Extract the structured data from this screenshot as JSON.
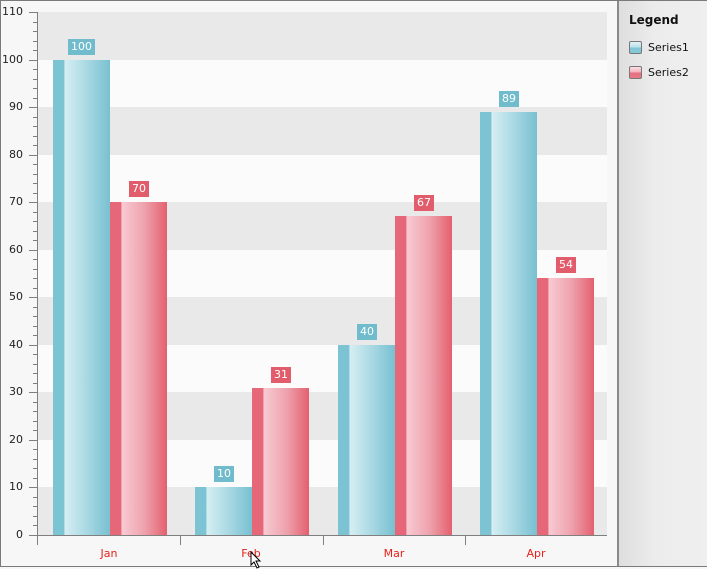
{
  "chart_data": {
    "type": "bar",
    "title": "",
    "xlabel": "",
    "ylabel": "",
    "categories": [
      "Jan",
      "Feb",
      "Mar",
      "Apr"
    ],
    "series": [
      {
        "name": "Series1",
        "values": [
          100,
          10,
          40,
          89
        ],
        "color": "#7cc3d3"
      },
      {
        "name": "Series2",
        "values": [
          70,
          31,
          67,
          54
        ],
        "color": "#e56778"
      }
    ],
    "ylim": [
      0,
      110
    ],
    "y_ticks": [
      0,
      10,
      20,
      30,
      40,
      50,
      60,
      70,
      80,
      90,
      100,
      110
    ],
    "grid": "alternating horizontal bands",
    "legend_position": "right",
    "data_labels": true
  },
  "legend": {
    "title": "Legend",
    "items": [
      {
        "label": "Series1"
      },
      {
        "label": "Series2"
      }
    ]
  },
  "colors": {
    "category_label": "#e8201a",
    "series1": "#7cc3d3",
    "series2": "#e56778"
  }
}
